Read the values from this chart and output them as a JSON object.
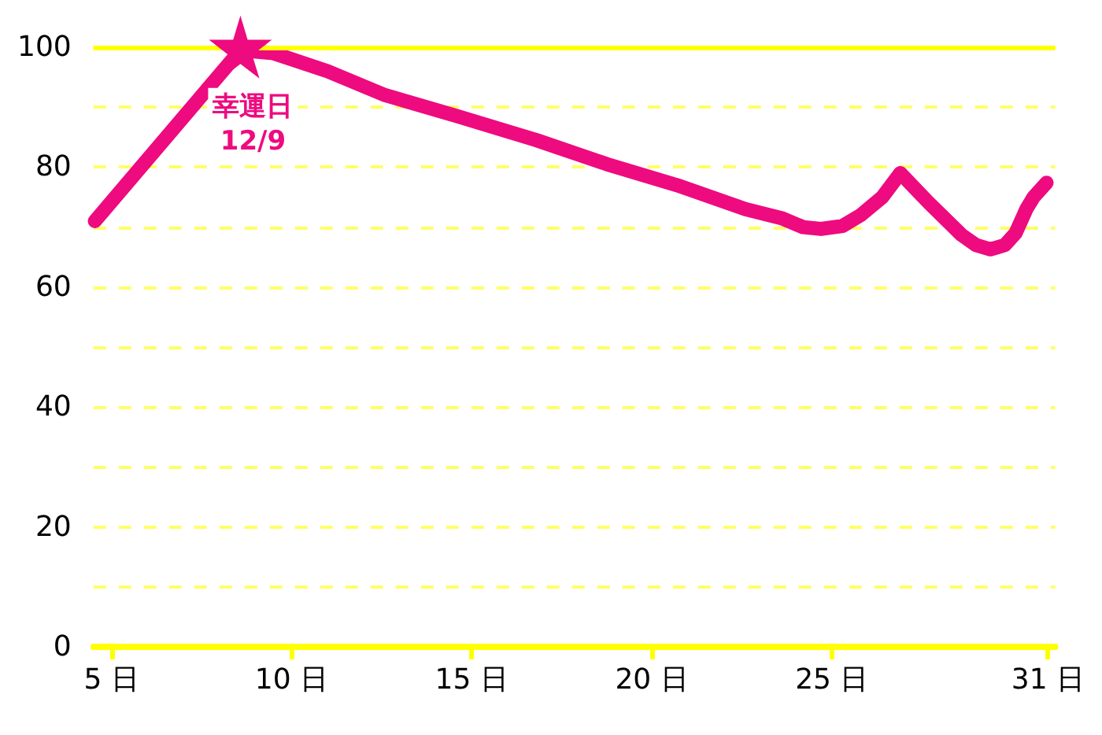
{
  "chart_data": {
    "type": "line",
    "x": [
      4.54,
      8.58,
      9.5,
      11,
      12.6,
      14.6,
      16.8,
      18.75,
      20.7,
      22.6,
      23.6,
      24.2,
      24.7,
      25.3,
      25.8,
      26.4,
      26.9,
      27.7,
      28.6,
      29,
      29.4,
      29.8,
      30.1,
      30.4,
      30.6,
      30.96
    ],
    "series": [
      {
        "color": "#ee0a7f",
        "values": [
          71,
          99.5,
          99,
          96,
          92,
          88.5,
          84.5,
          80.5,
          77,
          73,
          71.5,
          70,
          69.7,
          70.2,
          72,
          75,
          79,
          74,
          68.7,
          67,
          66.3,
          67,
          69,
          73,
          75,
          77.4
        ]
      }
    ],
    "xlim": [
      4.5,
      31.2
    ],
    "xticks": [
      {
        "value": 5,
        "label": "5 日"
      },
      {
        "value": 10,
        "label": "10 日"
      },
      {
        "value": 15,
        "label": "15 日"
      },
      {
        "value": 20,
        "label": "20 日"
      },
      {
        "value": 25,
        "label": "25 日"
      },
      {
        "value": 31,
        "label": "31 日"
      }
    ],
    "ylim": [
      0,
      100
    ],
    "yticks": [
      0,
      {
        "value": 10,
        "label": null
      },
      20,
      {
        "value": 30,
        "label": null
      },
      40,
      {
        "value": 50,
        "label": null
      },
      60,
      {
        "value": 70,
        "label": null
      },
      80,
      {
        "value": 90,
        "label": null
      },
      100
    ],
    "grid": "y",
    "line_style": "solid",
    "ref_lines": [
      {
        "axis": "y",
        "value": 100,
        "label": null,
        "color": "#ffff00"
      }
    ],
    "annotations": [
      {
        "text": "幸運日\n12/9",
        "x": 8.58,
        "y": 99.5
      }
    ]
  }
}
